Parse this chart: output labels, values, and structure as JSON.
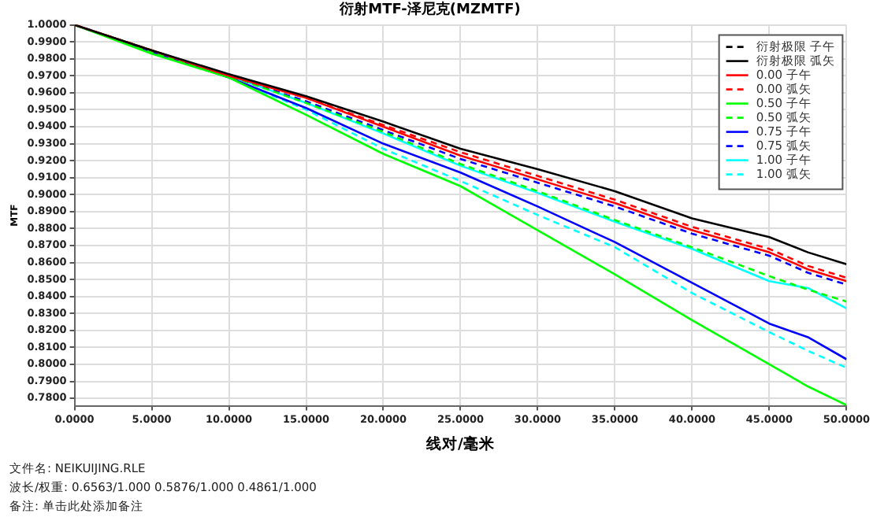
{
  "chart_data": {
    "type": "line",
    "title": "衍射MTF-泽尼克(MZMTF)",
    "xlabel": "线对/毫米",
    "ylabel": "MTF",
    "x": [
      0,
      5,
      10,
      15,
      20,
      25,
      30,
      35,
      40,
      45,
      47.5,
      50
    ],
    "series": [
      {
        "name": "衍射极限 子午",
        "color": "#000000",
        "line_style": "dashed",
        "values": [
          null,
          null,
          null,
          null,
          null,
          null,
          null,
          null,
          null,
          null,
          null,
          null
        ]
      },
      {
        "name": "衍射极限 弧矢",
        "color": "#000000",
        "line_style": "solid",
        "values": [
          1.0,
          0.985,
          0.971,
          0.958,
          0.943,
          0.927,
          0.915,
          0.902,
          0.886,
          0.875,
          0.866,
          0.859
        ]
      },
      {
        "name": "0.00 子午",
        "color": "#ff0000",
        "line_style": "solid",
        "values": [
          1.0,
          0.985,
          0.97,
          0.957,
          0.94,
          0.923,
          0.909,
          0.895,
          0.879,
          0.866,
          0.856,
          0.849
        ]
      },
      {
        "name": "0.00 弧矢",
        "color": "#ff0000",
        "line_style": "dashed",
        "values": [
          1.0,
          0.985,
          0.97,
          0.957,
          0.941,
          0.925,
          0.911,
          0.897,
          0.881,
          0.868,
          0.858,
          0.851
        ]
      },
      {
        "name": "0.50 子午",
        "color": "#00ff00",
        "line_style": "solid",
        "values": [
          1.0,
          0.983,
          0.969,
          0.947,
          0.924,
          0.905,
          0.879,
          0.853,
          0.826,
          0.8,
          0.787,
          0.776
        ]
      },
      {
        "name": "0.50 弧矢",
        "color": "#00ff00",
        "line_style": "dashed",
        "values": [
          1.0,
          0.984,
          0.97,
          0.954,
          0.937,
          0.918,
          0.902,
          0.885,
          0.869,
          0.852,
          0.844,
          0.837
        ]
      },
      {
        "name": "0.75 子午",
        "color": "#0000ff",
        "line_style": "solid",
        "values": [
          1.0,
          0.984,
          0.969,
          0.951,
          0.93,
          0.913,
          0.893,
          0.872,
          0.848,
          0.824,
          0.816,
          0.803
        ]
      },
      {
        "name": "0.75 弧矢",
        "color": "#0000ff",
        "line_style": "dashed",
        "values": [
          1.0,
          0.984,
          0.97,
          0.955,
          0.938,
          0.921,
          0.907,
          0.893,
          0.877,
          0.864,
          0.854,
          0.847
        ]
      },
      {
        "name": "1.00 子午",
        "color": "#00ffff",
        "line_style": "solid",
        "values": [
          1.0,
          0.984,
          0.97,
          0.954,
          0.936,
          0.917,
          0.901,
          0.884,
          0.868,
          0.849,
          0.845,
          0.833
        ]
      },
      {
        "name": "1.00 弧矢",
        "color": "#00ffff",
        "line_style": "dashed",
        "values": [
          1.0,
          0.984,
          0.969,
          0.95,
          0.927,
          0.908,
          0.888,
          0.869,
          0.842,
          0.819,
          0.808,
          0.798
        ]
      }
    ],
    "xlim": [
      0,
      50
    ],
    "ylim": [
      0.7756,
      1.0
    ],
    "xticks": [
      {
        "value": 0,
        "label": "0.0000"
      },
      {
        "value": 5,
        "label": "5.0000"
      },
      {
        "value": 10,
        "label": "10.0000"
      },
      {
        "value": 15,
        "label": "15.0000"
      },
      {
        "value": 20,
        "label": "20.0000"
      },
      {
        "value": 25,
        "label": "25.0000"
      },
      {
        "value": 30,
        "label": "30.0000"
      },
      {
        "value": 35,
        "label": "35.0000"
      },
      {
        "value": 40,
        "label": "40.0000"
      },
      {
        "value": 45,
        "label": "45.0000"
      },
      {
        "value": 50,
        "label": "50.0000"
      }
    ],
    "yticks": [
      {
        "value": 0.78,
        "label": "0.7800"
      },
      {
        "value": 0.79,
        "label": "0.7900"
      },
      {
        "value": 0.8,
        "label": "0.8000"
      },
      {
        "value": 0.81,
        "label": "0.8100"
      },
      {
        "value": 0.82,
        "label": "0.8200"
      },
      {
        "value": 0.83,
        "label": "0.8300"
      },
      {
        "value": 0.84,
        "label": "0.8400"
      },
      {
        "value": 0.85,
        "label": "0.8500"
      },
      {
        "value": 0.86,
        "label": "0.8600"
      },
      {
        "value": 0.87,
        "label": "0.8700"
      },
      {
        "value": 0.88,
        "label": "0.8800"
      },
      {
        "value": 0.89,
        "label": "0.8900"
      },
      {
        "value": 0.9,
        "label": "0.9000"
      },
      {
        "value": 0.91,
        "label": "0.9100"
      },
      {
        "value": 0.92,
        "label": "0.9200"
      },
      {
        "value": 0.93,
        "label": "0.9300"
      },
      {
        "value": 0.94,
        "label": "0.9400"
      },
      {
        "value": 0.95,
        "label": "0.9500"
      },
      {
        "value": 0.96,
        "label": "0.9600"
      },
      {
        "value": 0.97,
        "label": "0.9700"
      },
      {
        "value": 0.98,
        "label": "0.9800"
      },
      {
        "value": 0.99,
        "label": "0.9900"
      },
      {
        "value": 1.0,
        "label": "1.0000"
      }
    ],
    "grid": true,
    "legend": "top right",
    "marker": "none",
    "annotations": [
      "文件名: NEIKUIJING.RLE",
      "波长/权重: 0.6563/1.000 0.5876/1.000 0.4861/1.000",
      "备注: 单击此处添加备注"
    ]
  }
}
